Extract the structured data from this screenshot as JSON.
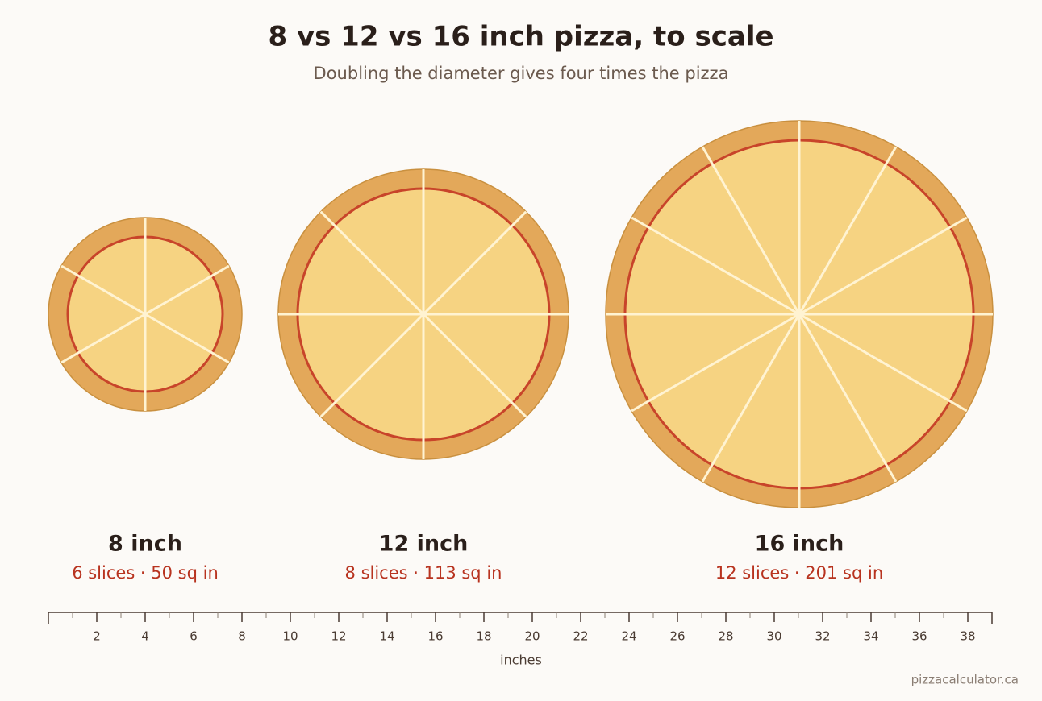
{
  "title": "8 vs 12 vs 16 inch pizza, to scale",
  "subtitle": "Doubling the diameter gives four times the pizza",
  "pizzas": [
    {
      "name": "8 inch",
      "diameter": 8,
      "slices": 6,
      "caption": "6 slices · 50 sq in"
    },
    {
      "name": "12 inch",
      "diameter": 12,
      "slices": 8,
      "caption": "8 slices · 113 sq in"
    },
    {
      "name": "16 inch",
      "diameter": 16,
      "slices": 12,
      "caption": "12 slices · 201 sq in"
    }
  ],
  "ruler": {
    "range": [
      0,
      39
    ],
    "ticks": [
      2,
      4,
      6,
      8,
      10,
      12,
      14,
      16,
      18,
      20,
      22,
      24,
      26,
      28,
      30,
      32,
      34,
      36,
      38
    ],
    "label": "inches"
  },
  "footer": "pizzacalculator.ca"
}
